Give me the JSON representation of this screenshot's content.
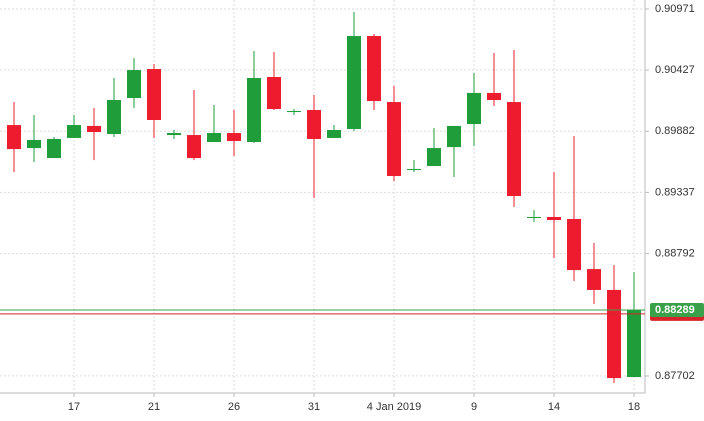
{
  "chart_data": {
    "type": "candlestick",
    "categories": [
      null,
      null,
      null,
      "17",
      null,
      null,
      null,
      "21",
      null,
      null,
      null,
      "26",
      null,
      null,
      null,
      "31",
      null,
      null,
      null,
      "4 Jan 2019",
      null,
      null,
      null,
      "9",
      null,
      null,
      null,
      "14",
      null,
      null,
      null,
      "18"
    ],
    "open": [
      0.89937,
      0.89732,
      0.89643,
      0.89822,
      0.89929,
      0.89857,
      0.90178,
      0.90436,
      0.89848,
      0.89848,
      0.89786,
      0.89866,
      0.89786,
      0.90365,
      0.90053,
      0.90071,
      0.89822,
      0.89902,
      0.9073,
      0.90142,
      0.89536,
      0.89572,
      0.89741,
      0.89946,
      0.90223,
      0.90142,
      0.89118,
      0.89118,
      0.891,
      0.88654,
      0.88468,
      0.87692
    ],
    "high": [
      0.90142,
      0.90027,
      0.89831,
      0.90027,
      0.90089,
      0.90356,
      0.90534,
      0.90481,
      0.89893,
      0.90249,
      0.90116,
      0.90071,
      0.90597,
      0.90588,
      0.9008,
      0.90205,
      0.89937,
      0.90944,
      0.90748,
      0.90285,
      0.89625,
      0.89911,
      0.89929,
      0.90401,
      0.90579,
      0.90606,
      0.8918,
      0.89518,
      0.89839,
      0.88886,
      0.8869,
      0.88628
    ],
    "low": [
      0.89518,
      0.89608,
      0.89643,
      0.89822,
      0.89625,
      0.89831,
      0.90089,
      0.89822,
      0.89813,
      0.89625,
      0.89786,
      0.89661,
      0.89777,
      0.90071,
      0.90027,
      0.89287,
      0.89822,
      0.89884,
      0.90071,
      0.89438,
      0.89518,
      0.89572,
      0.89474,
      0.8975,
      0.90107,
      0.89207,
      0.89073,
      0.88752,
      0.88548,
      0.88343,
      0.87639,
      0.87692
    ],
    "close": [
      0.89723,
      0.89804,
      0.89813,
      0.89937,
      0.89875,
      0.9016,
      0.90427,
      0.89982,
      0.89866,
      0.89643,
      0.89866,
      0.89795,
      0.90356,
      0.9008,
      0.90062,
      0.89813,
      0.89893,
      0.9073,
      0.90151,
      0.89483,
      0.89545,
      0.89732,
      0.89929,
      0.90223,
      0.9016,
      0.89305,
      0.89118,
      0.89091,
      0.88645,
      0.88468,
      0.87683,
      0.88289
    ],
    "up_color": "#1f9d3a",
    "down_color": "#ec1c2e",
    "ylim": [
      0.8755,
      0.91051
    ],
    "yticks": [
      0.90971,
      0.90427,
      0.89882,
      0.89337,
      0.88792,
      0.87702
    ],
    "grid": true,
    "price_lines": [
      {
        "value": 0.88255,
        "color": "#d8232a"
      },
      {
        "value": 0.88289,
        "color": "#3aa04a"
      }
    ]
  }
}
